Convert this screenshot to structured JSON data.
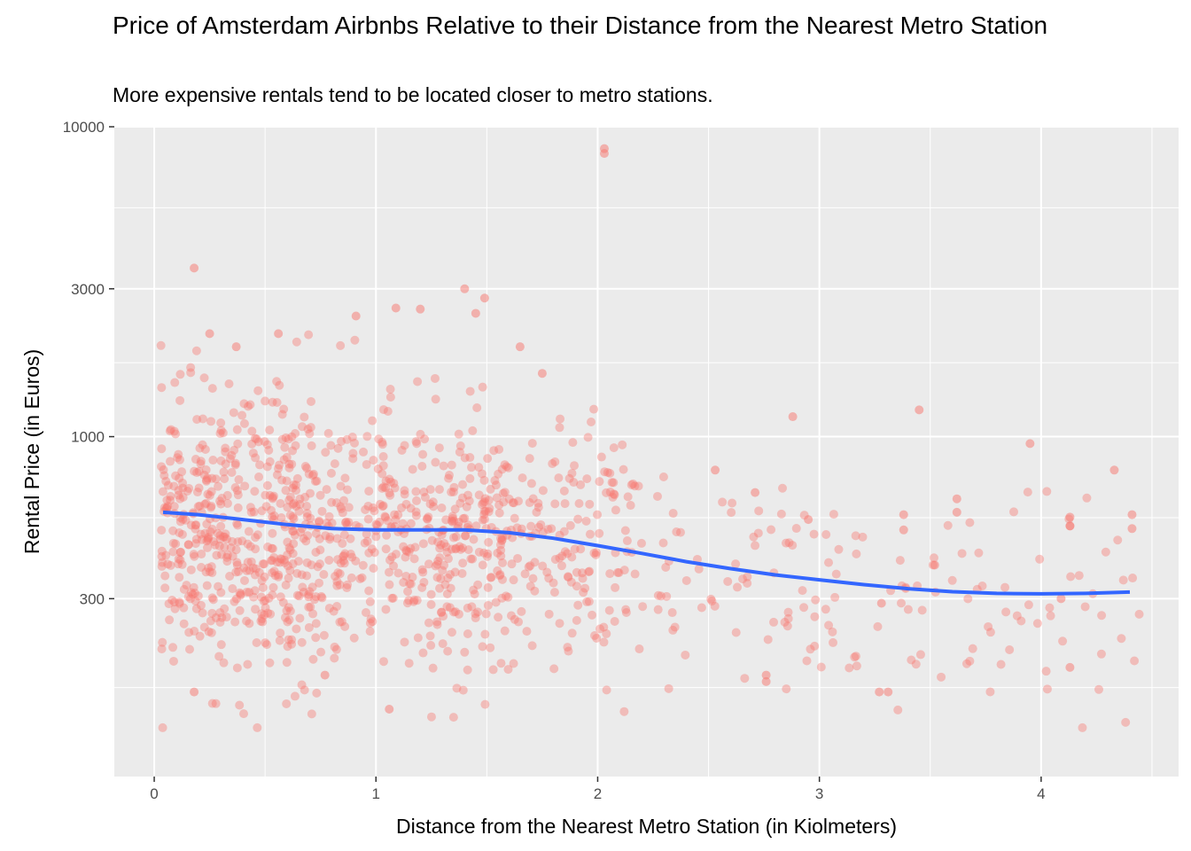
{
  "chart_data": {
    "type": "scatter",
    "title": "Price of Amsterdam Airbnbs Relative to their Distance from the Nearest Metro Station",
    "subtitle": "More expensive rentals tend to be located closer to metro stations.",
    "xlabel": "Distance from the Nearest Metro Station (in Kiolmeters)",
    "ylabel": "Rental Price (in Euros)",
    "xlim": [
      -0.18,
      4.62
    ],
    "ylim": [
      80,
      10000
    ],
    "y_scale": "log10",
    "x_ticks": [
      0,
      1,
      2,
      3,
      4
    ],
    "x_tick_labels": [
      "0",
      "1",
      "2",
      "3",
      "4"
    ],
    "y_ticks": [
      300,
      1000,
      3000,
      10000
    ],
    "y_tick_labels": [
      "300",
      "1000",
      "3000",
      "10000"
    ],
    "grid": true,
    "legend": "none",
    "colors": {
      "points": "#F8766D",
      "trend": "#3366FF",
      "panel": "#EBEBEB",
      "grid": "#FFFFFF"
    },
    "highlight_points": [
      {
        "x": 2.03,
        "y": 8500
      },
      {
        "x": 2.03,
        "y": 8200
      },
      {
        "x": 0.18,
        "y": 3500
      },
      {
        "x": 1.4,
        "y": 3000
      },
      {
        "x": 1.49,
        "y": 2800
      },
      {
        "x": 1.09,
        "y": 2600
      },
      {
        "x": 1.2,
        "y": 2580
      },
      {
        "x": 0.91,
        "y": 2450
      },
      {
        "x": 1.45,
        "y": 2500
      },
      {
        "x": 1.65,
        "y": 1950
      },
      {
        "x": 0.25,
        "y": 2150
      },
      {
        "x": 0.37,
        "y": 1950
      },
      {
        "x": 0.56,
        "y": 2150
      },
      {
        "x": 1.75,
        "y": 1600
      },
      {
        "x": 2.88,
        "y": 1160
      },
      {
        "x": 3.45,
        "y": 1220
      },
      {
        "x": 3.95,
        "y": 950
      },
      {
        "x": 4.33,
        "y": 780
      },
      {
        "x": 4.41,
        "y": 560
      },
      {
        "x": 4.41,
        "y": 505
      },
      {
        "x": 4.13,
        "y": 550
      },
      {
        "x": 4.13,
        "y": 515
      },
      {
        "x": 3.62,
        "y": 630
      },
      {
        "x": 3.62,
        "y": 570
      },
      {
        "x": 3.52,
        "y": 385
      },
      {
        "x": 3.28,
        "y": 290
      },
      {
        "x": 3.27,
        "y": 150
      },
      {
        "x": 3.31,
        "y": 150
      },
      {
        "x": 4.13,
        "y": 180
      },
      {
        "x": 4.09,
        "y": 300
      },
      {
        "x": 3.38,
        "y": 560
      },
      {
        "x": 3.38,
        "y": 500
      },
      {
        "x": 2.53,
        "y": 780
      },
      {
        "x": 2.71,
        "y": 660
      },
      {
        "x": 2.95,
        "y": 540
      },
      {
        "x": 2.76,
        "y": 170
      },
      {
        "x": 2.76,
        "y": 162
      },
      {
        "x": 1.06,
        "y": 132
      },
      {
        "x": 0.18,
        "y": 150
      },
      {
        "x": 0.77,
        "y": 170
      }
    ],
    "series": [
      {
        "type": "smooth",
        "x": [
          0.04,
          0.2,
          0.4,
          0.6,
          0.8,
          1.0,
          1.2,
          1.4,
          1.6,
          1.8,
          2.0,
          2.2,
          2.4,
          2.6,
          2.8,
          3.0,
          3.2,
          3.4,
          3.6,
          3.8,
          4.0,
          4.2,
          4.4
        ],
        "y": [
          570,
          560,
          540,
          520,
          505,
          500,
          500,
          500,
          490,
          470,
          445,
          420,
          395,
          375,
          358,
          345,
          333,
          323,
          316,
          312,
          311,
          312,
          315
        ]
      }
    ],
    "scatter_cloud": [
      {
        "x_range": [
          0.03,
          0.75
        ],
        "y_median": 480,
        "spread": 0.3,
        "count": 520
      },
      {
        "x_range": [
          0.75,
          1.6
        ],
        "y_median": 470,
        "spread": 0.27,
        "count": 420
      },
      {
        "x_range": [
          1.6,
          2.2
        ],
        "y_median": 420,
        "spread": 0.26,
        "count": 160
      },
      {
        "x_range": [
          2.2,
          3.1
        ],
        "y_median": 330,
        "spread": 0.22,
        "count": 75
      },
      {
        "x_range": [
          3.1,
          4.45
        ],
        "y_median": 280,
        "spread": 0.22,
        "count": 75
      }
    ]
  }
}
